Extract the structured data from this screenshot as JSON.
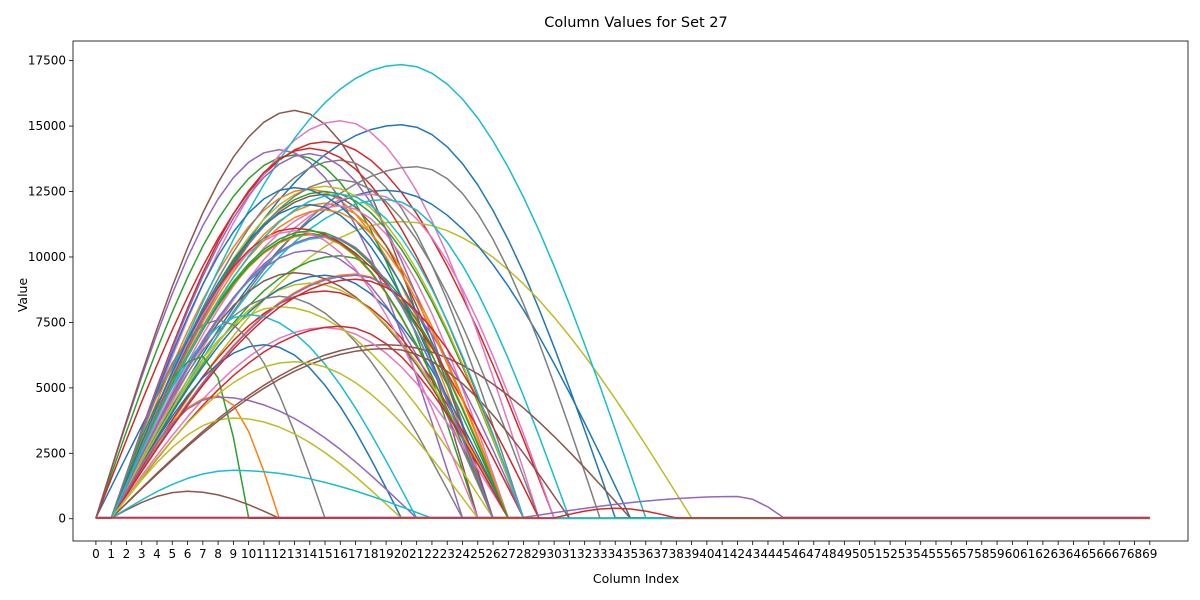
{
  "chart_data": {
    "type": "line",
    "title": "Column Values for Set 27",
    "xlabel": "Column Index",
    "ylabel": "Value",
    "xlim": [
      -1.5,
      71.5
    ],
    "ylim": [
      -850,
      18250
    ],
    "x_ticks": [
      0,
      1,
      2,
      3,
      4,
      5,
      6,
      7,
      8,
      9,
      10,
      11,
      12,
      13,
      14,
      15,
      16,
      17,
      18,
      19,
      20,
      21,
      22,
      23,
      24,
      25,
      26,
      27,
      28,
      29,
      30,
      31,
      32,
      33,
      34,
      35,
      36,
      37,
      38,
      39,
      40,
      41,
      42,
      43,
      44,
      45,
      46,
      47,
      48,
      49,
      50,
      51,
      52,
      53,
      54,
      55,
      56,
      57,
      58,
      59,
      60,
      61,
      62,
      63,
      64,
      65,
      66,
      67,
      68,
      69
    ],
    "y_ticks": [
      0,
      2500,
      5000,
      7500,
      10000,
      12500,
      15000,
      17500
    ],
    "y_tick_labels": [
      "0",
      "2500",
      "5000",
      "7500",
      "10000",
      "12500",
      "15000",
      "17500"
    ],
    "grid": false,
    "legend": "none",
    "color_cycle": [
      "#1f77b4",
      "#ff7f0e",
      "#2ca02c",
      "#d62728",
      "#9467bd",
      "#8c564b",
      "#e377c2",
      "#7f7f7f",
      "#bcbd22",
      "#17becf"
    ],
    "series": [
      {
        "color": "#1f77b4",
        "start": 0,
        "peak_x": 20,
        "peak": 15050,
        "end": 34,
        "tail": 40
      },
      {
        "color": "#ff7f0e",
        "start": 1,
        "peak_x": 14,
        "peak": 12600,
        "end": 26,
        "tail": 20
      },
      {
        "color": "#2ca02c",
        "start": 0,
        "peak_x": 13,
        "peak": 13900,
        "end": 25,
        "tail": 15
      },
      {
        "color": "#d62728",
        "start": 0,
        "peak_x": 15,
        "peak": 14400,
        "end": 30,
        "tail": 25
      },
      {
        "color": "#9467bd",
        "start": 0,
        "peak_x": 12,
        "peak": 14100,
        "end": 24,
        "tail": 30
      },
      {
        "color": "#8c564b",
        "start": 0,
        "peak_x": 13,
        "peak": 15600,
        "end": 25,
        "tail": 20
      },
      {
        "color": "#e377c2",
        "start": 1,
        "peak_x": 16,
        "peak": 15200,
        "end": 29,
        "tail": 20
      },
      {
        "color": "#7f7f7f",
        "start": 1,
        "peak_x": 16,
        "peak": 13700,
        "end": 28,
        "tail": 15
      },
      {
        "color": "#bcbd22",
        "start": 1,
        "peak_x": 20,
        "peak": 11350,
        "end": 39,
        "tail": 35
      },
      {
        "color": "#17becf",
        "start": 1,
        "peak_x": 20,
        "peak": 17350,
        "end": 36,
        "tail": 30
      },
      {
        "color": "#1f77b4",
        "start": 1,
        "peak_x": 19,
        "peak": 12550,
        "end": 35,
        "tail": 20
      },
      {
        "color": "#ff7f0e",
        "start": 1,
        "peak_x": 15,
        "peak": 12050,
        "end": 27,
        "tail": 20
      },
      {
        "color": "#2ca02c",
        "start": 1,
        "peak_x": 15,
        "peak": 12500,
        "end": 28,
        "tail": 25
      },
      {
        "color": "#d62728",
        "start": 1,
        "peak_x": 14,
        "peak": 14150,
        "end": 28,
        "tail": 20
      },
      {
        "color": "#9467bd",
        "start": 1,
        "peak_x": 14,
        "peak": 13950,
        "end": 26,
        "tail": 20
      },
      {
        "color": "#8c564b",
        "start": 1,
        "peak_x": 15,
        "peak": 12400,
        "end": 26,
        "tail": 20
      },
      {
        "color": "#e377c2",
        "start": 1,
        "peak_x": 18,
        "peak": 12400,
        "end": 30,
        "tail": 20
      },
      {
        "color": "#7f7f7f",
        "start": 1,
        "peak_x": 21,
        "peak": 13450,
        "end": 33,
        "tail": 20
      },
      {
        "color": "#bcbd22",
        "start": 1,
        "peak_x": 15,
        "peak": 12700,
        "end": 28,
        "tail": 20
      },
      {
        "color": "#17becf",
        "start": 1,
        "peak_x": 19,
        "peak": 12200,
        "end": 31,
        "tail": 20
      },
      {
        "color": "#1f77b4",
        "start": 1,
        "peak_x": 13,
        "peak": 12650,
        "end": 27,
        "tail": 20
      },
      {
        "color": "#ff7f0e",
        "start": 1,
        "peak_x": 17,
        "peak": 9350,
        "end": 27,
        "tail": 20
      },
      {
        "color": "#2ca02c",
        "start": 1,
        "peak_x": 16,
        "peak": 10050,
        "end": 27,
        "tail": 20
      },
      {
        "color": "#d62728",
        "start": 1,
        "peak_x": 15,
        "peak": 8700,
        "end": 27,
        "tail": 20
      },
      {
        "color": "#9467bd",
        "start": 1,
        "peak_x": 14,
        "peak": 10250,
        "end": 26,
        "tail": 20
      },
      {
        "color": "#8c564b",
        "start": 1,
        "peak_x": 13,
        "peak": 9400,
        "end": 27,
        "tail": 20
      },
      {
        "color": "#e377c2",
        "start": 1,
        "peak_x": 16,
        "peak": 11950,
        "end": 27,
        "tail": 20
      },
      {
        "color": "#7f7f7f",
        "start": 1,
        "peak_x": 16,
        "peak": 12950,
        "end": 29,
        "tail": 20
      },
      {
        "color": "#bcbd22",
        "start": 1,
        "peak_x": 14,
        "peak": 9000,
        "end": 27,
        "tail": 20
      },
      {
        "color": "#17becf",
        "start": 1,
        "peak_x": 15,
        "peak": 10750,
        "end": 26,
        "tail": 20
      },
      {
        "color": "#1f77b4",
        "start": 1,
        "peak_x": 15,
        "peak": 9300,
        "end": 27,
        "tail": 20
      },
      {
        "color": "#ff7f0e",
        "start": 1,
        "peak_x": 14,
        "peak": 10850,
        "end": 26,
        "tail": 20
      },
      {
        "color": "#2ca02c",
        "start": 1,
        "peak_x": 14,
        "peak": 10900,
        "end": 26,
        "tail": 20
      },
      {
        "color": "#d62728",
        "start": 1,
        "peak_x": 13,
        "peak": 11100,
        "end": 28,
        "tail": 20
      },
      {
        "color": "#9467bd",
        "start": 1,
        "peak_x": 17,
        "peak": 9300,
        "end": 28,
        "tail": 20
      },
      {
        "color": "#8c564b",
        "start": 1,
        "peak_x": 19,
        "peak": 6650,
        "end": 35,
        "tail": 20
      },
      {
        "color": "#e377c2",
        "start": 1,
        "peak_x": 15,
        "peak": 7300,
        "end": 27,
        "tail": 20
      },
      {
        "color": "#7f7f7f",
        "start": 1,
        "peak_x": 12,
        "peak": 8500,
        "end": 24,
        "tail": 20
      },
      {
        "color": "#bcbd22",
        "start": 1,
        "peak_x": 12,
        "peak": 8100,
        "end": 26,
        "tail": 20
      },
      {
        "color": "#17becf",
        "start": 1,
        "peak_x": 10,
        "peak": 7800,
        "end": 21,
        "tail": 20
      },
      {
        "color": "#1f77b4",
        "start": 1,
        "peak_x": 11,
        "peak": 6650,
        "end": 20,
        "tail": 20
      },
      {
        "color": "#ff7f0e",
        "start": 1,
        "peak_x": 8,
        "peak": 4700,
        "end": 12,
        "tail": 20
      },
      {
        "color": "#2ca02c",
        "start": 1,
        "peak_x": 7,
        "peak": 6200,
        "end": 10,
        "tail": 20
      },
      {
        "color": "#d62728",
        "start": 1,
        "peak_x": 16,
        "peak": 7350,
        "end": 27,
        "tail": 20
      },
      {
        "color": "#9467bd",
        "start": 1,
        "peak_x": 8,
        "peak": 4650,
        "end": 21,
        "tail": 20
      },
      {
        "color": "#8c564b",
        "start": 1,
        "peak_x": 6,
        "peak": 1050,
        "end": 12,
        "tail": 20
      },
      {
        "color": "#e377c2",
        "start": 1,
        "peak_x": 13,
        "peak": 11000,
        "end": 25,
        "tail": 20
      },
      {
        "color": "#7f7f7f",
        "start": 1,
        "peak_x": 8,
        "peak": 7600,
        "end": 15,
        "tail": 20
      },
      {
        "color": "#bcbd22",
        "start": 1,
        "peak_x": 9,
        "peak": 3850,
        "end": 20,
        "tail": 20
      },
      {
        "color": "#17becf",
        "start": 1,
        "peak_x": 9,
        "peak": 1850,
        "end": 22,
        "tail": 20
      },
      {
        "color": "#1f77b4",
        "start": 1,
        "peak_x": 14,
        "peak": 12000,
        "end": 26,
        "tail": 20
      },
      {
        "color": "#ff7f0e",
        "start": 1,
        "peak_x": 15,
        "peak": 11800,
        "end": 27,
        "tail": 20
      },
      {
        "color": "#2ca02c",
        "start": 1,
        "peak_x": 14,
        "peak": 11000,
        "end": 27,
        "tail": 20
      },
      {
        "color": "#d62728",
        "start": 1,
        "peak_x": 17,
        "peak": 9150,
        "end": 29,
        "tail": 20
      },
      {
        "color": "#9467bd",
        "start": 1,
        "peak_x": 15,
        "peak": 10800,
        "end": 26,
        "tail": 20
      },
      {
        "color": "#8c564b",
        "start": 1,
        "peak_x": 19,
        "peak": 6500,
        "end": 31,
        "tail": 20
      },
      {
        "color": "#bcbd22",
        "start": 1,
        "peak_x": 13,
        "peak": 6000,
        "end": 25,
        "tail": 20
      },
      {
        "color": "#17becf",
        "start": 1,
        "peak_x": 16,
        "peak": 12400,
        "end": 28,
        "tail": 20
      },
      {
        "color": "#9467bd",
        "start": 28,
        "peak_x": 42,
        "peak": 850,
        "end": 45,
        "tail": 50
      },
      {
        "color": "#d62728",
        "start": 30,
        "peak_x": 34,
        "peak": 400,
        "end": 38,
        "tail": 30
      }
    ]
  }
}
